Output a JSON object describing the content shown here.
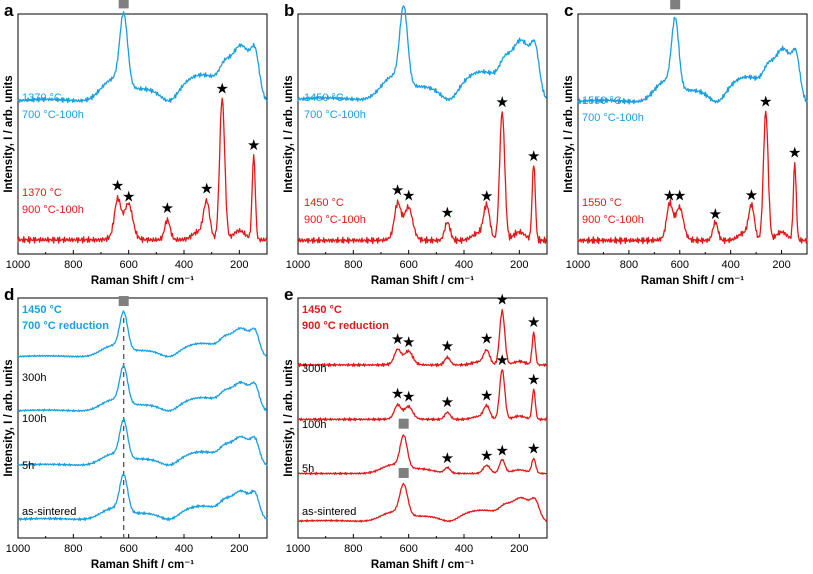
{
  "figure": {
    "shared_xlabel": "Raman Shift / cm⁻¹",
    "shared_ylabel": "Intensity, I / arb. units",
    "legend_markers": {
      "square": "■",
      "star": "★"
    }
  },
  "chart_data": [
    {
      "id": "a",
      "type": "line",
      "panel_label": "a",
      "xlabel": "Raman Shift / cm⁻¹",
      "ylabel": "Intensity, I / arb. units",
      "xlim": [
        1000,
        100
      ],
      "xticks": [
        1000,
        800,
        600,
        400,
        200
      ],
      "series": [
        {
          "name": "1370 °C 700 °C-100h",
          "color": "#1a9fe0",
          "label_lines": [
            "1370 °C",
            "700 °C-100h"
          ],
          "label_bold": false,
          "type": "blue",
          "offset": 0.55,
          "amp": 0.45
        },
        {
          "name": "1370 °C 900 °C-100h",
          "color": "#e01a1a",
          "label_lines": [
            "1370 °C",
            "900 °C-100h"
          ],
          "label_bold": false,
          "type": "red",
          "offset": 0.0,
          "amp": 0.68
        }
      ],
      "markers": [
        {
          "shape": "square",
          "x": 618,
          "series": 0
        },
        {
          "shape": "star",
          "x": 640,
          "series": 1
        },
        {
          "shape": "star",
          "x": 600,
          "series": 1
        },
        {
          "shape": "star",
          "x": 460,
          "series": 1
        },
        {
          "shape": "star",
          "x": 318,
          "series": 1
        },
        {
          "shape": "star",
          "x": 262,
          "series": 1
        },
        {
          "shape": "star",
          "x": 148,
          "series": 1
        }
      ]
    },
    {
      "id": "b",
      "type": "line",
      "panel_label": "b",
      "xlabel": "Raman Shift / cm⁻¹",
      "ylabel": "Intensity, I / arb. units",
      "xlim": [
        1000,
        100
      ],
      "xticks": [
        1000,
        800,
        600,
        400,
        200
      ],
      "series": [
        {
          "name": "1450 °C 700 °C-100h",
          "color": "#1a9fe0",
          "label_lines": [
            "1450 °C",
            "700 °C-100h"
          ],
          "label_bold": false,
          "type": "blue",
          "offset": 0.55,
          "amp": 0.48
        },
        {
          "name": "1450 °C 900 °C-100h",
          "color": "#e01a1a",
          "label_lines": [
            "1450 °C",
            "900 °C-100h"
          ],
          "label_bold": false,
          "type": "red",
          "offset": 0.0,
          "amp": 0.62
        }
      ],
      "markers": [
        {
          "shape": "square",
          "x": 618,
          "series": 0
        },
        {
          "shape": "star",
          "x": 640,
          "series": 1
        },
        {
          "shape": "star",
          "x": 600,
          "series": 1
        },
        {
          "shape": "star",
          "x": 460,
          "series": 1
        },
        {
          "shape": "star",
          "x": 318,
          "series": 1
        },
        {
          "shape": "star",
          "x": 262,
          "series": 1
        },
        {
          "shape": "star",
          "x": 148,
          "series": 1
        }
      ]
    },
    {
      "id": "c",
      "type": "line",
      "panel_label": "c",
      "xlabel": "Raman Shift / cm⁻¹",
      "ylabel": "Intensity, I / arb. units",
      "xlim": [
        1000,
        100
      ],
      "xticks": [
        1000,
        800,
        600,
        400,
        200
      ],
      "series": [
        {
          "name": "1550 °C 700 °C-100h",
          "color": "#1a9fe0",
          "label_lines": [
            "1550 °C",
            "700 °C-100h"
          ],
          "label_bold": false,
          "type": "blue",
          "offset": 0.55,
          "amp": 0.43
        },
        {
          "name": "1550 °C 900 °C-100h",
          "color": "#e01a1a",
          "label_lines": [
            "1550 °C",
            "900 °C-100h"
          ],
          "label_bold": false,
          "type": "red",
          "offset": 0.0,
          "amp": 0.62
        }
      ],
      "markers": [
        {
          "shape": "square",
          "x": 618,
          "series": 0
        },
        {
          "shape": "star",
          "x": 640,
          "series": 1
        },
        {
          "shape": "star",
          "x": 600,
          "series": 1
        },
        {
          "shape": "star",
          "x": 460,
          "series": 1
        },
        {
          "shape": "star",
          "x": 318,
          "series": 1
        },
        {
          "shape": "star",
          "x": 262,
          "series": 1
        },
        {
          "shape": "star",
          "x": 148,
          "series": 1
        }
      ]
    },
    {
      "id": "d",
      "type": "line",
      "panel_label": "d",
      "xlabel": "Raman Shift / cm⁻¹",
      "ylabel": "Intensity, I / arb. units",
      "xlim": [
        1000,
        100
      ],
      "xticks": [
        1000,
        800,
        600,
        400,
        200
      ],
      "title_lines": [
        "1450 °C",
        "700 °C reduction"
      ],
      "title_color": "#1a9fe0",
      "dashed_line_x": 618,
      "series": [
        {
          "name": "300h",
          "color": "#1a9fe0",
          "label_lines": [
            "300h"
          ],
          "type": "blue",
          "offset": 0.72,
          "amp": 0.23
        },
        {
          "name": "100h",
          "color": "#1a9fe0",
          "label_lines": [
            "100h"
          ],
          "type": "blue",
          "offset": 0.48,
          "amp": 0.23
        },
        {
          "name": "5h",
          "color": "#1a9fe0",
          "label_lines": [
            "5h"
          ],
          "type": "blue",
          "offset": 0.24,
          "amp": 0.23
        },
        {
          "name": "as-sintered",
          "color": "#1a9fe0",
          "label_lines": [
            "as-sintered"
          ],
          "type": "blue",
          "offset": 0.0,
          "amp": 0.23
        }
      ],
      "markers": [
        {
          "shape": "square",
          "x": 618,
          "series": 0
        }
      ]
    },
    {
      "id": "e",
      "type": "line",
      "panel_label": "e",
      "xlabel": "Raman Shift / cm⁻¹",
      "ylabel": "Intensity, I / arb. units",
      "xlim": [
        1000,
        100
      ],
      "xticks": [
        1000,
        800,
        600,
        400,
        200
      ],
      "title_lines": [
        "1450 °C",
        "900 °C reduction"
      ],
      "title_color": "#e01a1a",
      "series": [
        {
          "name": "300h",
          "color": "#e01a1a",
          "label_lines": [
            "300h"
          ],
          "type": "red",
          "offset": 0.72,
          "amp": 0.26
        },
        {
          "name": "100h",
          "color": "#e01a1a",
          "label_lines": [
            "100h"
          ],
          "type": "red",
          "offset": 0.48,
          "amp": 0.24
        },
        {
          "name": "5h",
          "color": "#e01a1a",
          "label_lines": [
            "5h"
          ],
          "type": "mixed",
          "offset": 0.24,
          "amp": 0.2
        },
        {
          "name": "as-sintered",
          "color": "#e01a1a",
          "label_lines": [
            "as-sintered"
          ],
          "type": "blue",
          "offset": 0.0,
          "amp": 0.19
        }
      ],
      "markers": [
        {
          "shape": "star",
          "x": 640,
          "series": 0
        },
        {
          "shape": "star",
          "x": 600,
          "series": 0
        },
        {
          "shape": "star",
          "x": 460,
          "series": 0
        },
        {
          "shape": "star",
          "x": 318,
          "series": 0
        },
        {
          "shape": "star",
          "x": 262,
          "series": 0
        },
        {
          "shape": "star",
          "x": 148,
          "series": 0
        },
        {
          "shape": "star",
          "x": 640,
          "series": 1
        },
        {
          "shape": "star",
          "x": 600,
          "series": 1
        },
        {
          "shape": "star",
          "x": 460,
          "series": 1
        },
        {
          "shape": "star",
          "x": 318,
          "series": 1
        },
        {
          "shape": "star",
          "x": 262,
          "series": 1
        },
        {
          "shape": "star",
          "x": 148,
          "series": 1
        },
        {
          "shape": "square",
          "x": 618,
          "series": 2
        },
        {
          "shape": "star",
          "x": 460,
          "series": 2
        },
        {
          "shape": "star",
          "x": 318,
          "series": 2
        },
        {
          "shape": "star",
          "x": 262,
          "series": 2
        },
        {
          "shape": "star",
          "x": 148,
          "series": 2
        },
        {
          "shape": "square",
          "x": 618,
          "series": 3
        }
      ]
    }
  ]
}
